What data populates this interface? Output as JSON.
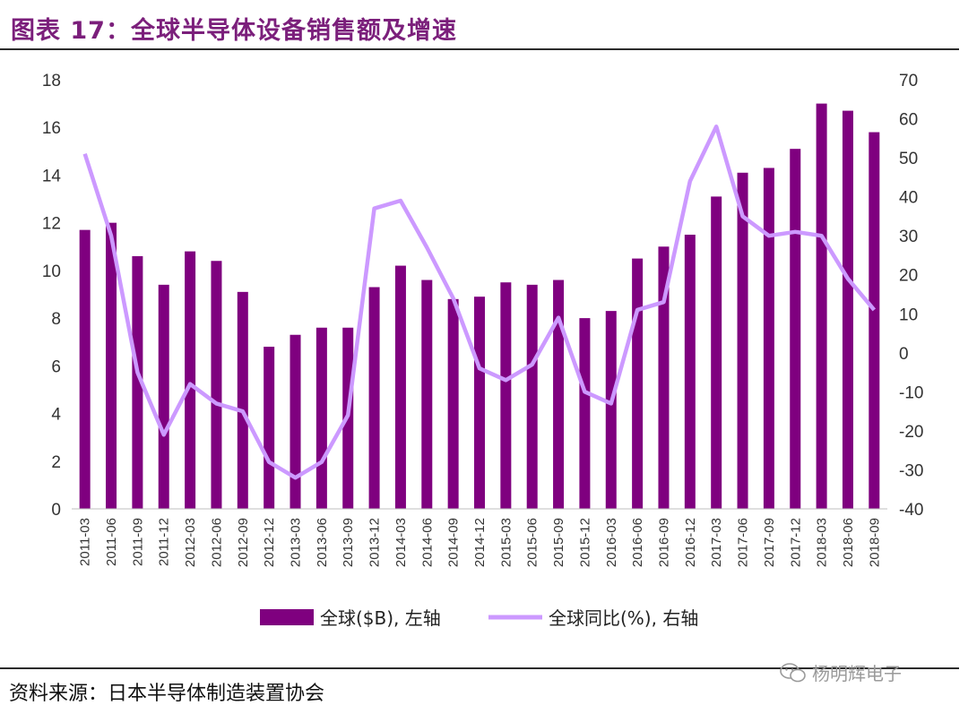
{
  "header": {
    "title": "图表 17：全球半导体设备销售额及增速"
  },
  "footer": {
    "source": "资料来源：日本半导体制造装置协会",
    "watermark": "杨明辉电子"
  },
  "colors": {
    "bar": "#7f007f",
    "line": "#cc99ff",
    "title": "#7b1f7b"
  },
  "chart_data": {
    "type": "bar",
    "categories": [
      "2011-03",
      "2011-06",
      "2011-09",
      "2011-12",
      "2012-03",
      "2012-06",
      "2012-09",
      "2012-12",
      "2013-03",
      "2013-06",
      "2013-09",
      "2013-12",
      "2014-03",
      "2014-06",
      "2014-09",
      "2014-12",
      "2015-03",
      "2015-06",
      "2015-09",
      "2015-12",
      "2016-03",
      "2016-06",
      "2016-09",
      "2016-12",
      "2017-03",
      "2017-06",
      "2017-09",
      "2017-12",
      "2018-03",
      "2018-06",
      "2018-09"
    ],
    "series": [
      {
        "name": "全球($B), 左轴",
        "type": "bar",
        "axis": "left",
        "values": [
          11.7,
          12.0,
          10.6,
          9.4,
          10.8,
          10.4,
          9.1,
          6.8,
          7.3,
          7.6,
          7.6,
          9.3,
          10.2,
          9.6,
          8.8,
          8.9,
          9.5,
          9.4,
          9.6,
          8.0,
          8.3,
          10.5,
          11.0,
          11.5,
          13.1,
          14.1,
          14.3,
          15.1,
          17.0,
          16.7,
          15.8
        ]
      },
      {
        "name": "全球同比(%), 右轴",
        "type": "line",
        "axis": "right",
        "values": [
          51,
          30,
          -5,
          -21,
          -8,
          -13,
          -15,
          -28,
          -32,
          -28,
          -16,
          37,
          39,
          27,
          14,
          -4,
          -7,
          -3,
          9,
          -10,
          -13,
          11,
          13,
          44,
          58,
          35,
          30,
          31,
          30,
          19,
          11
        ]
      }
    ],
    "y_left": {
      "ylim": [
        0,
        18
      ],
      "ticks": [
        0,
        2,
        4,
        6,
        8,
        10,
        12,
        14,
        16,
        18
      ]
    },
    "y_right": {
      "ylim": [
        -40,
        70
      ],
      "ticks": [
        -40,
        -30,
        -20,
        -10,
        0,
        10,
        20,
        30,
        40,
        50,
        60,
        70
      ]
    },
    "legend_position": "bottom-center",
    "grid": false
  }
}
